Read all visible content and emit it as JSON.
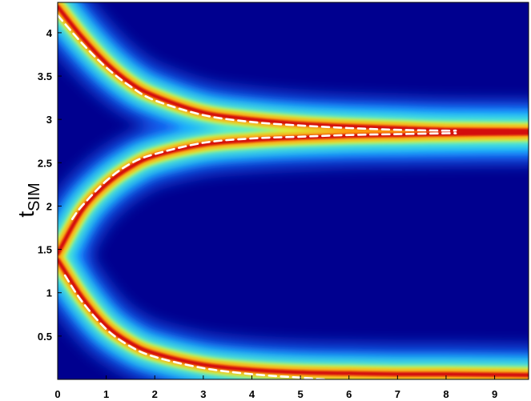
{
  "chart_data": {
    "type": "heatmap",
    "title": "",
    "xlabel": "",
    "ylabel": "t",
    "ylabel_subscript": "SIM",
    "xlim": [
      0,
      9.7
    ],
    "ylim": [
      0,
      4.35
    ],
    "x_ticks": [
      0,
      1,
      2,
      3,
      4,
      5,
      6,
      7,
      8,
      9
    ],
    "x_tick_labels": [
      "0",
      "1",
      "2",
      "3",
      "4",
      "5",
      "6",
      "7",
      "8",
      "9"
    ],
    "y_ticks": [
      0.5,
      1,
      1.5,
      2,
      2.5,
      3,
      3.5,
      4
    ],
    "y_tick_labels": [
      "0.5",
      "1",
      "1.5",
      "2",
      "2.5",
      "3",
      "3.5",
      "4"
    ],
    "colormap": "jet",
    "background_color": "#00008f",
    "branches": [
      {
        "name": "",
        "x": [
          0,
          0.5,
          1,
          1.5,
          2,
          3,
          4,
          5,
          6,
          7,
          8,
          9.7
        ],
        "y": [
          4.3,
          3.95,
          3.65,
          3.42,
          3.27,
          3.08,
          3.0,
          2.95,
          2.92,
          2.9,
          2.88,
          2.87
        ]
      },
      {
        "name": "",
        "x": [
          0,
          0.5,
          1,
          1.5,
          2,
          3,
          4,
          5,
          6,
          7,
          8,
          9.7
        ],
        "y": [
          1.45,
          1.95,
          2.25,
          2.45,
          2.58,
          2.71,
          2.76,
          2.79,
          2.81,
          2.82,
          2.83,
          2.84
        ]
      },
      {
        "name": "",
        "x": [
          0,
          0.5,
          1,
          1.5,
          2,
          3,
          4,
          5,
          6,
          7,
          8,
          9.7
        ],
        "y": [
          1.38,
          0.95,
          0.62,
          0.42,
          0.3,
          0.17,
          0.11,
          0.08,
          0.07,
          0.06,
          0.06,
          0.05
        ]
      }
    ],
    "dashed_fits": [
      {
        "name": "",
        "x": [
          0,
          0.5,
          1,
          1.5,
          2,
          3,
          4,
          5,
          6,
          7,
          8,
          8.2
        ],
        "y": [
          4.2,
          3.88,
          3.6,
          3.38,
          3.22,
          3.05,
          2.97,
          2.93,
          2.9,
          2.88,
          2.87,
          2.87
        ]
      },
      {
        "name": "",
        "x": [
          0.3,
          0.5,
          1,
          1.5,
          2,
          3,
          4,
          5,
          6,
          7,
          8,
          8.2
        ],
        "y": [
          1.85,
          2.0,
          2.29,
          2.49,
          2.6,
          2.73,
          2.78,
          2.8,
          2.82,
          2.83,
          2.84,
          2.84
        ]
      },
      {
        "name": "",
        "x": [
          0.15,
          0.5,
          1,
          1.5,
          2,
          3,
          4,
          5,
          5.5
        ],
        "y": [
          1.2,
          0.9,
          0.58,
          0.38,
          0.26,
          0.13,
          0.06,
          0.02,
          0.0
        ]
      }
    ],
    "grid": false,
    "legend": "none"
  }
}
